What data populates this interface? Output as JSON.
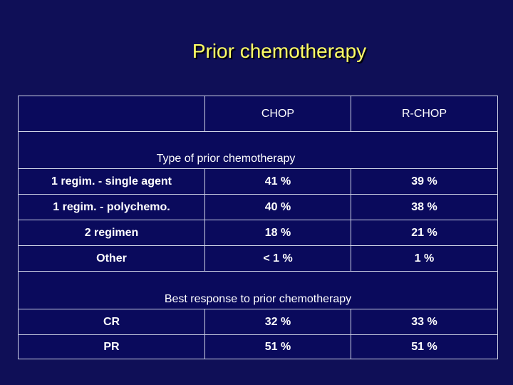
{
  "title": "Prior chemotherapy",
  "table": {
    "headers": [
      "",
      "CHOP",
      "R-CHOP"
    ],
    "section1": "Type of prior chemotherapy",
    "rows1": [
      {
        "label": "1 regim. - single agent",
        "chop": "41 %",
        "rchop": "39 %"
      },
      {
        "label": "1 regim. - polychemo.",
        "chop": "40 %",
        "rchop": "38 %"
      },
      {
        "label": "2 regimen",
        "chop": "18 %",
        "rchop": "21 %"
      },
      {
        "label": "Other",
        "chop": "< 1 %",
        "rchop": "1 %"
      }
    ],
    "section2": "Best response to prior chemotherapy",
    "rows2": [
      {
        "label": "CR",
        "chop": "32 %",
        "rchop": "33 %"
      },
      {
        "label": "PR",
        "chop": "51 %",
        "rchop": "51 %"
      }
    ]
  }
}
